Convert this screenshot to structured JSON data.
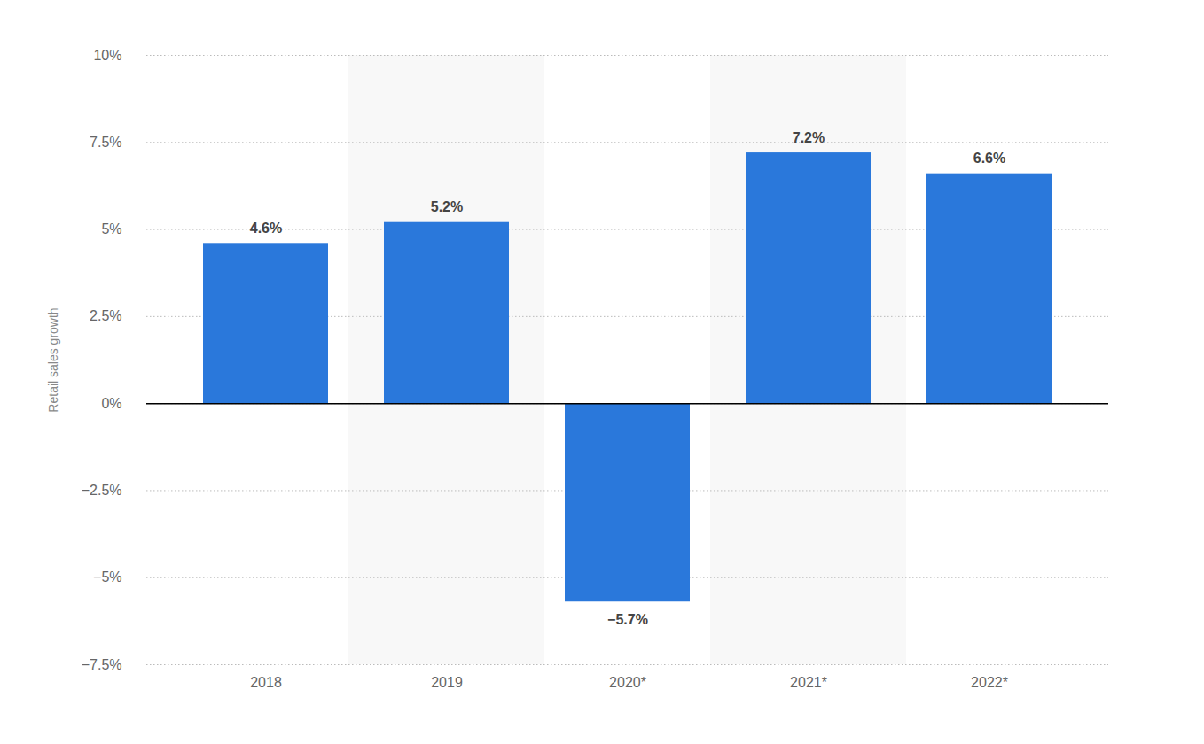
{
  "chart_data": {
    "type": "bar",
    "y_label": "Retail sales growth",
    "categories": [
      "2018",
      "2019",
      "2020*",
      "2021*",
      "2022*"
    ],
    "values": [
      4.6,
      5.2,
      -5.7,
      7.2,
      6.6
    ],
    "value_labels": [
      "4.6%",
      "5.2%",
      "−5.7%",
      "7.2%",
      "6.6%"
    ],
    "color": "#2a78db",
    "ylim": [
      -7.5,
      10
    ],
    "yticks": [
      {
        "value": -7.5,
        "label": "−7.5%"
      },
      {
        "value": -5,
        "label": "−5%"
      },
      {
        "value": -2.5,
        "label": "−2.5%"
      },
      {
        "value": 0,
        "label": "0%"
      },
      {
        "value": 2.5,
        "label": "2.5%"
      },
      {
        "value": 5,
        "label": "5%"
      },
      {
        "value": 7.5,
        "label": "7.5%"
      },
      {
        "value": 10,
        "label": "10%"
      }
    ],
    "grid": true,
    "data_labels": true
  }
}
